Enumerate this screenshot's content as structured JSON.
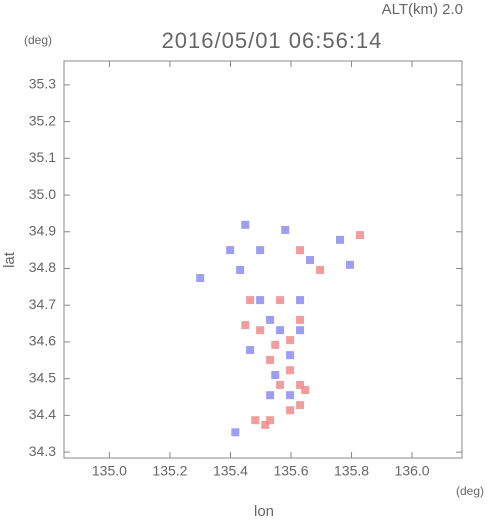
{
  "chart_data": {
    "type": "scatter",
    "title": "2016/05/01 06:56:14",
    "subtitle": "ALT(km) 2.0",
    "x_label": "lon",
    "y_label": "lat",
    "x_unit": "(deg)",
    "y_unit": "(deg)",
    "xlim": [
      134.85,
      136.165
    ],
    "ylim": [
      34.284,
      35.365
    ],
    "xticks": [
      {
        "value": 135.0,
        "label": "135.0"
      },
      {
        "value": 135.2,
        "label": "135.2"
      },
      {
        "value": 135.4,
        "label": "135.4"
      },
      {
        "value": 135.6,
        "label": "135.6"
      },
      {
        "value": 135.8,
        "label": "135.8"
      },
      {
        "value": 136.0,
        "label": "136.0"
      }
    ],
    "yticks": [
      {
        "value": 34.3,
        "label": "34.3"
      },
      34.4,
      34.5,
      34.6,
      34.7,
      34.8,
      34.9,
      {
        "value": 35.0,
        "label": "35.0"
      },
      35.1,
      35.2,
      35.3
    ],
    "series": [
      {
        "color": "#f08c8c",
        "x": [
          135.531,
          135.597,
          135.63,
          135.515,
          135.564,
          135.63,
          135.531,
          135.597,
          135.498,
          135.63,
          135.564,
          135.465,
          135.828,
          135.696,
          135.63,
          135.449,
          135.482,
          135.647,
          135.548,
          135.597
        ],
        "values": [
          34.387,
          34.414,
          34.428,
          34.374,
          34.483,
          34.483,
          34.551,
          34.605,
          34.632,
          34.66,
          34.714,
          34.714,
          34.891,
          34.796,
          34.85,
          34.646,
          34.387,
          34.469,
          34.592,
          34.523
        ]
      },
      {
        "color": "#8c8cf0",
        "x": [
          135.564,
          135.63,
          135.531,
          135.465,
          135.597,
          135.762,
          135.795,
          135.663,
          135.498,
          135.449,
          135.581,
          135.416,
          135.548,
          135.63,
          135.399,
          135.597,
          135.498,
          135.432,
          135.531,
          135.3
        ],
        "values": [
          34.632,
          34.632,
          34.66,
          34.578,
          34.564,
          34.878,
          34.81,
          34.823,
          34.85,
          34.919,
          34.905,
          34.354,
          34.51,
          34.714,
          34.85,
          34.455,
          34.714,
          34.796,
          34.455,
          34.774
        ]
      }
    ]
  }
}
